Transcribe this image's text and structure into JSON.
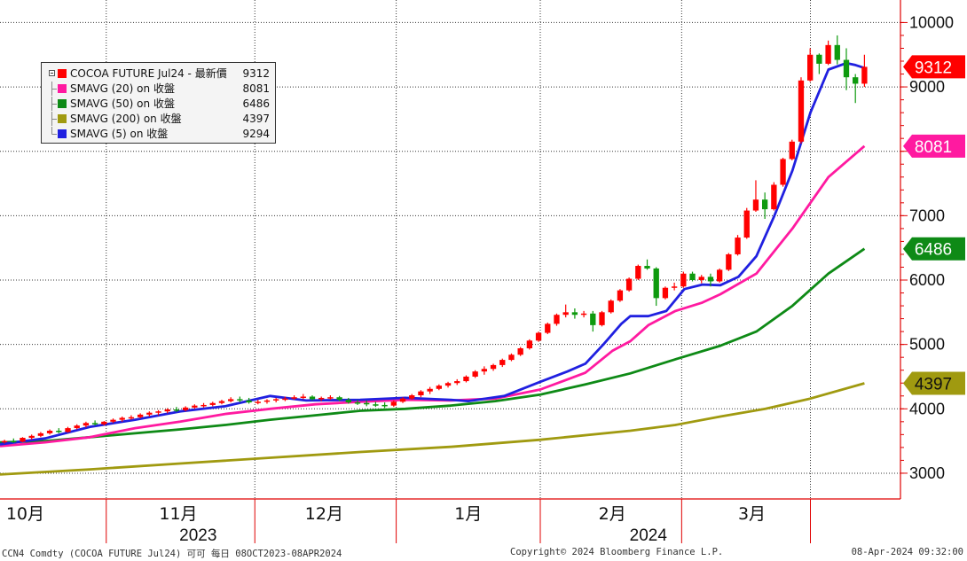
{
  "chart_data": {
    "type": "candlestick",
    "ylim": [
      2600,
      10350
    ],
    "yticks": [
      "3000",
      "4000",
      "5000",
      "6000",
      "7000",
      "8000",
      "9000",
      "10000"
    ],
    "month_labels": [
      "10月",
      "11月",
      "12月",
      "1月",
      "2月",
      "3月"
    ],
    "year_labels": [
      "2023",
      "2024"
    ],
    "legend": [
      {
        "label": "COCOA FUTURE Jul24 - 最新價",
        "value": "9312",
        "color": "#ff0000"
      },
      {
        "label": "SMAVG (20)  on 收盤",
        "value": "8081",
        "color": "#ff1aa0"
      },
      {
        "label": "SMAVG (50)  on 收盤",
        "value": "6486",
        "color": "#0e8a16"
      },
      {
        "label": "SMAVG (200)  on 收盤",
        "value": "4397",
        "color": "#a09a10"
      },
      {
        "label": "SMAVG (5)  on 收盤",
        "value": "9294",
        "color": "#2020e0"
      }
    ],
    "price_tags": [
      {
        "value": "9312",
        "color": "#ff0000",
        "text_color": "#ffffff"
      },
      {
        "value": "8081",
        "color": "#ff1aa0",
        "text_color": "#ffffff"
      },
      {
        "value": "6486",
        "color": "#0e8a16",
        "text_color": "#ffffff"
      },
      {
        "value": "4397",
        "color": "#a09a10",
        "text_color": "#111111"
      }
    ],
    "candles": [
      [
        3480,
        3520,
        3460,
        3500
      ],
      [
        3500,
        3540,
        3470,
        3490
      ],
      [
        3490,
        3560,
        3480,
        3550
      ],
      [
        3550,
        3600,
        3520,
        3580
      ],
      [
        3580,
        3640,
        3560,
        3620
      ],
      [
        3620,
        3680,
        3600,
        3660
      ],
      [
        3660,
        3700,
        3620,
        3640
      ],
      [
        3640,
        3720,
        3630,
        3700
      ],
      [
        3700,
        3760,
        3680,
        3740
      ],
      [
        3740,
        3800,
        3710,
        3780
      ],
      [
        3780,
        3820,
        3740,
        3760
      ],
      [
        3760,
        3810,
        3740,
        3800
      ],
      [
        3800,
        3850,
        3780,
        3830
      ],
      [
        3830,
        3880,
        3800,
        3860
      ],
      [
        3860,
        3900,
        3830,
        3870
      ],
      [
        3870,
        3930,
        3850,
        3910
      ],
      [
        3910,
        3960,
        3880,
        3940
      ],
      [
        3940,
        3980,
        3900,
        3960
      ],
      [
        3960,
        4010,
        3930,
        3990
      ],
      [
        3990,
        4030,
        3950,
        3980
      ],
      [
        3980,
        4040,
        3960,
        4020
      ],
      [
        4020,
        4070,
        4000,
        4050
      ],
      [
        4050,
        4090,
        4020,
        4060
      ],
      [
        4060,
        4110,
        4040,
        4090
      ],
      [
        4090,
        4140,
        4070,
        4120
      ],
      [
        4120,
        4180,
        4100,
        4150
      ],
      [
        4150,
        4190,
        4100,
        4130
      ],
      [
        4130,
        4170,
        4080,
        4100
      ],
      [
        4100,
        4140,
        4070,
        4110
      ],
      [
        4110,
        4150,
        4080,
        4130
      ],
      [
        4130,
        4170,
        4100,
        4150
      ],
      [
        4150,
        4190,
        4120,
        4160
      ],
      [
        4160,
        4210,
        4140,
        4180
      ],
      [
        4180,
        4230,
        4150,
        4190
      ],
      [
        4190,
        4210,
        4130,
        4150
      ],
      [
        4150,
        4190,
        4120,
        4170
      ],
      [
        4170,
        4210,
        4140,
        4180
      ],
      [
        4180,
        4200,
        4120,
        4140
      ],
      [
        4140,
        4170,
        4080,
        4100
      ],
      [
        4100,
        4140,
        4060,
        4090
      ],
      [
        4090,
        4130,
        4040,
        4070
      ],
      [
        4070,
        4110,
        4030,
        4060
      ],
      [
        4060,
        4100,
        4010,
        4050
      ],
      [
        4050,
        4130,
        4030,
        4110
      ],
      [
        4110,
        4180,
        4090,
        4160
      ],
      [
        4160,
        4230,
        4140,
        4210
      ],
      [
        4210,
        4290,
        4180,
        4270
      ],
      [
        4270,
        4340,
        4230,
        4310
      ],
      [
        4310,
        4380,
        4290,
        4360
      ],
      [
        4360,
        4420,
        4330,
        4400
      ],
      [
        4400,
        4460,
        4370,
        4430
      ],
      [
        4430,
        4520,
        4410,
        4500
      ],
      [
        4500,
        4600,
        4480,
        4580
      ],
      [
        4580,
        4660,
        4530,
        4620
      ],
      [
        4620,
        4700,
        4590,
        4680
      ],
      [
        4680,
        4780,
        4650,
        4760
      ],
      [
        4760,
        4860,
        4740,
        4840
      ],
      [
        4840,
        4960,
        4820,
        4940
      ],
      [
        4940,
        5080,
        4920,
        5060
      ],
      [
        5060,
        5200,
        5040,
        5180
      ],
      [
        5180,
        5340,
        5160,
        5320
      ],
      [
        5320,
        5480,
        5290,
        5460
      ],
      [
        5460,
        5620,
        5420,
        5500
      ],
      [
        5500,
        5560,
        5400,
        5460
      ],
      [
        5460,
        5520,
        5420,
        5480
      ],
      [
        5480,
        5520,
        5200,
        5300
      ],
      [
        5300,
        5520,
        5280,
        5500
      ],
      [
        5500,
        5700,
        5480,
        5680
      ],
      [
        5680,
        5860,
        5660,
        5840
      ],
      [
        5840,
        6040,
        5820,
        6020
      ],
      [
        6020,
        6240,
        6000,
        6220
      ],
      [
        6220,
        6320,
        6160,
        6180
      ],
      [
        6180,
        6200,
        5600,
        5720
      ],
      [
        5720,
        5900,
        5700,
        5880
      ],
      [
        5880,
        5960,
        5840,
        5900
      ],
      [
        5900,
        6130,
        5880,
        6100
      ],
      [
        6100,
        6130,
        5980,
        6000
      ],
      [
        6000,
        6080,
        5950,
        6050
      ],
      [
        6050,
        6100,
        5900,
        5980
      ],
      [
        5980,
        6180,
        5960,
        6160
      ],
      [
        6160,
        6420,
        6140,
        6400
      ],
      [
        6400,
        6700,
        6380,
        6660
      ],
      [
        6660,
        7120,
        6640,
        7080
      ],
      [
        7080,
        7550,
        7060,
        7250
      ],
      [
        7250,
        7360,
        6950,
        7100
      ],
      [
        7100,
        7520,
        7080,
        7480
      ],
      [
        7480,
        7900,
        7450,
        7880
      ],
      [
        7880,
        8180,
        7860,
        8150
      ],
      [
        8150,
        9150,
        8120,
        9100
      ],
      [
        9100,
        9600,
        9080,
        9500
      ],
      [
        9500,
        9520,
        9200,
        9360
      ],
      [
        9360,
        9720,
        9340,
        9650
      ],
      [
        9650,
        9800,
        9350,
        9420
      ],
      [
        9420,
        9600,
        8950,
        9150
      ],
      [
        9150,
        9200,
        8750,
        9050
      ],
      [
        9050,
        9500,
        9000,
        9312
      ]
    ],
    "series": [
      {
        "name": "SMAVG (5)",
        "color": "#2020e0",
        "values": [
          [
            0,
            3450
          ],
          [
            0.05,
            3540
          ],
          [
            0.1,
            3720
          ],
          [
            0.15,
            3830
          ],
          [
            0.2,
            3960
          ],
          [
            0.25,
            4040
          ],
          [
            0.3,
            4200
          ],
          [
            0.34,
            4130
          ],
          [
            0.4,
            4140
          ],
          [
            0.45,
            4170
          ],
          [
            0.5,
            4140
          ],
          [
            0.52,
            4120
          ],
          [
            0.56,
            4200
          ],
          [
            0.6,
            4420
          ],
          [
            0.63,
            4580
          ],
          [
            0.65,
            4700
          ],
          [
            0.67,
            5000
          ],
          [
            0.69,
            5320
          ],
          [
            0.7,
            5440
          ],
          [
            0.72,
            5440
          ],
          [
            0.74,
            5520
          ],
          [
            0.76,
            5860
          ],
          [
            0.78,
            5930
          ],
          [
            0.8,
            5920
          ],
          [
            0.82,
            6050
          ],
          [
            0.84,
            6370
          ],
          [
            0.86,
            7000
          ],
          [
            0.88,
            7700
          ],
          [
            0.9,
            8600
          ],
          [
            0.92,
            9270
          ],
          [
            0.94,
            9370
          ],
          [
            0.95,
            9340
          ],
          [
            0.96,
            9294
          ]
        ]
      },
      {
        "name": "SMAVG (20)",
        "color": "#ff1aa0",
        "values": [
          [
            0,
            3420
          ],
          [
            0.05,
            3480
          ],
          [
            0.1,
            3560
          ],
          [
            0.15,
            3700
          ],
          [
            0.2,
            3800
          ],
          [
            0.25,
            3920
          ],
          [
            0.3,
            4000
          ],
          [
            0.35,
            4070
          ],
          [
            0.4,
            4110
          ],
          [
            0.45,
            4140
          ],
          [
            0.5,
            4130
          ],
          [
            0.55,
            4160
          ],
          [
            0.6,
            4300
          ],
          [
            0.65,
            4560
          ],
          [
            0.68,
            4900
          ],
          [
            0.7,
            5050
          ],
          [
            0.72,
            5300
          ],
          [
            0.75,
            5520
          ],
          [
            0.78,
            5650
          ],
          [
            0.8,
            5780
          ],
          [
            0.84,
            6100
          ],
          [
            0.88,
            6800
          ],
          [
            0.92,
            7600
          ],
          [
            0.96,
            8081
          ]
        ]
      },
      {
        "name": "SMAVG (50)",
        "color": "#0e8a16",
        "values": [
          [
            0,
            3480
          ],
          [
            0.05,
            3500
          ],
          [
            0.1,
            3560
          ],
          [
            0.15,
            3620
          ],
          [
            0.2,
            3680
          ],
          [
            0.25,
            3750
          ],
          [
            0.3,
            3830
          ],
          [
            0.35,
            3900
          ],
          [
            0.4,
            3970
          ],
          [
            0.45,
            4000
          ],
          [
            0.5,
            4050
          ],
          [
            0.55,
            4120
          ],
          [
            0.6,
            4220
          ],
          [
            0.65,
            4380
          ],
          [
            0.7,
            4550
          ],
          [
            0.75,
            4770
          ],
          [
            0.8,
            4980
          ],
          [
            0.84,
            5200
          ],
          [
            0.88,
            5600
          ],
          [
            0.92,
            6100
          ],
          [
            0.96,
            6486
          ]
        ]
      },
      {
        "name": "SMAVG (200)",
        "color": "#a09a10",
        "values": [
          [
            0,
            2980
          ],
          [
            0.1,
            3060
          ],
          [
            0.2,
            3150
          ],
          [
            0.3,
            3240
          ],
          [
            0.4,
            3330
          ],
          [
            0.5,
            3410
          ],
          [
            0.6,
            3520
          ],
          [
            0.7,
            3660
          ],
          [
            0.75,
            3750
          ],
          [
            0.8,
            3880
          ],
          [
            0.85,
            4000
          ],
          [
            0.9,
            4160
          ],
          [
            0.96,
            4397
          ]
        ]
      }
    ]
  },
  "footer": {
    "left": "CCN4 Comdty (COCOA FUTURE     Jul24) 可可  每日 08OCT2023-08APR2024",
    "center": "Copyright© 2024 Bloomberg Finance L.P.",
    "right": "08-Apr-2024 09:32:00"
  }
}
